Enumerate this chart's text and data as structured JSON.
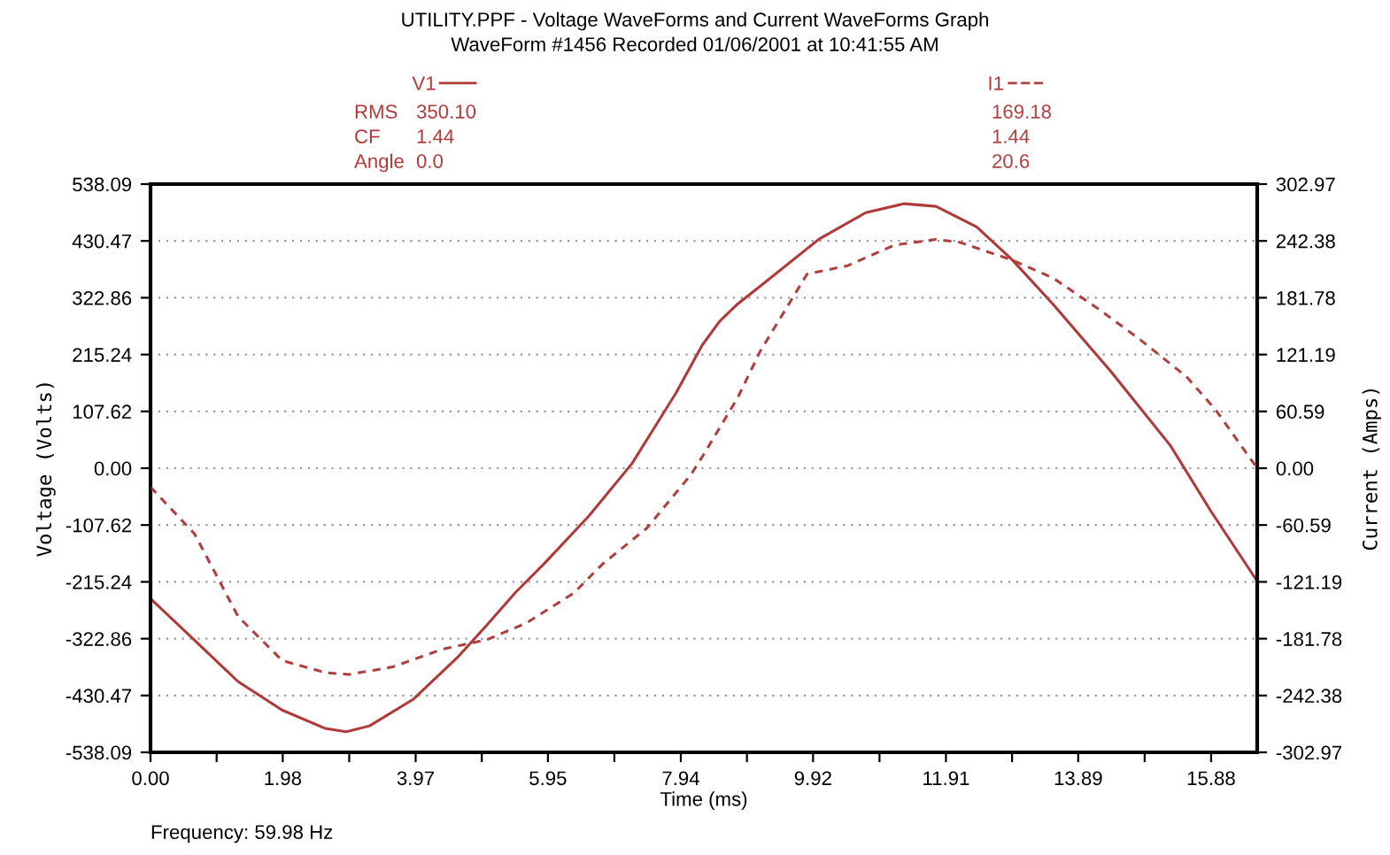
{
  "chart_data": {
    "type": "line",
    "title": "UTILITY.PPF - Voltage WaveForms and Current WaveForms Graph",
    "subtitle": "WaveForm #1456 Recorded 01/06/2001 at 10:41:55 AM",
    "xlabel": "Time (ms)",
    "ylabel": "Voltage (Volts)",
    "y2label": "Current (Amps)",
    "legend": "top",
    "grid": "y",
    "xlim": [
      0,
      16.57
    ],
    "ylim": [
      -538.09,
      538.09
    ],
    "y2lim": [
      -302.97,
      302.97
    ],
    "xticks": [
      {
        "value": 0,
        "label": "0.00"
      },
      {
        "value": 0.99,
        "label": null
      },
      {
        "value": 1.98,
        "label": "1.98"
      },
      {
        "value": 2.975,
        "label": null
      },
      {
        "value": 3.97,
        "label": "3.97"
      },
      {
        "value": 4.96,
        "label": null
      },
      {
        "value": 5.95,
        "label": "5.95"
      },
      {
        "value": 6.945,
        "label": null
      },
      {
        "value": 7.94,
        "label": "7.94"
      },
      {
        "value": 8.93,
        "label": null
      },
      {
        "value": 9.92,
        "label": "9.92"
      },
      {
        "value": 10.915,
        "label": null
      },
      {
        "value": 11.91,
        "label": "11.91"
      },
      {
        "value": 12.9,
        "label": null
      },
      {
        "value": 13.89,
        "label": "13.89"
      },
      {
        "value": 14.885,
        "label": null
      },
      {
        "value": 15.88,
        "label": "15.88"
      }
    ],
    "yticks": [
      {
        "value": -538.09,
        "label": "-538.09"
      },
      {
        "value": -430.47,
        "label": "-430.47"
      },
      {
        "value": -322.86,
        "label": "-322.86"
      },
      {
        "value": -215.24,
        "label": "-215.24"
      },
      {
        "value": -107.62,
        "label": "-107.62"
      },
      {
        "value": 0,
        "label": "0.00"
      },
      {
        "value": 107.62,
        "label": "107.62"
      },
      {
        "value": 215.24,
        "label": "215.24"
      },
      {
        "value": 322.86,
        "label": "322.86"
      },
      {
        "value": 430.47,
        "label": "430.47"
      },
      {
        "value": 538.09,
        "label": "538.09"
      }
    ],
    "y2ticks": [
      {
        "value": -302.97,
        "label": "-302.97"
      },
      {
        "value": -242.38,
        "label": "-242.38"
      },
      {
        "value": -181.78,
        "label": "-181.78"
      },
      {
        "value": -121.19,
        "label": "-121.19"
      },
      {
        "value": -60.59,
        "label": "-60.59"
      },
      {
        "value": 0,
        "label": "0.00"
      },
      {
        "value": 60.59,
        "label": "60.59"
      },
      {
        "value": 121.19,
        "label": "121.19"
      },
      {
        "value": 181.78,
        "label": "181.78"
      },
      {
        "value": 242.38,
        "label": "242.38"
      },
      {
        "value": 302.97,
        "label": "302.97"
      }
    ],
    "series": [
      {
        "name": "V1",
        "color": "#b03a3a",
        "line_style": "solid",
        "x": [
          0,
          0.66,
          1.31,
          1.97,
          2.62,
          2.93,
          3.28,
          3.93,
          4.59,
          5.03,
          5.46,
          5.9,
          6.56,
          7.21,
          7.87,
          8.26,
          8.52,
          8.79,
          9.13,
          10.01,
          10.71,
          11.28,
          11.76,
          12.37,
          12.9,
          13.51,
          14.38,
          15.27,
          15.87,
          16.57
        ],
        "values": [
          -247,
          -326,
          -404,
          -458,
          -493,
          -499,
          -488,
          -438,
          -359,
          -298,
          -236,
          -180,
          -91,
          9,
          143,
          233,
          278,
          311,
          345,
          434,
          484,
          501,
          496,
          457,
          395,
          311,
          183,
          43,
          -80,
          -214
        ]
      },
      {
        "name": "I1",
        "color": "#b04040",
        "line_style": "dashed",
        "axis": "y2",
        "x": [
          0,
          0.66,
          1.31,
          1.97,
          2.62,
          2.97,
          3.62,
          4.37,
          5.03,
          5.63,
          6.34,
          6.77,
          7.43,
          8.09,
          8.26,
          8.79,
          9.13,
          9.83,
          10.44,
          11.14,
          11.76,
          12.11,
          12.9,
          13.51,
          14.21,
          14.82,
          15.52,
          15.95,
          16.57
        ],
        "values": [
          -20,
          -70,
          -158,
          -205,
          -218,
          -220,
          -212,
          -193,
          -183,
          -165,
          -133,
          -102,
          -64,
          -7,
          12,
          75,
          125,
          207,
          216,
          238,
          244,
          241,
          222,
          203,
          169,
          137,
          97,
          62,
          0
        ]
      }
    ],
    "annotations": [
      "RMS",
      "CF",
      "Angle",
      "350.10",
      "1.44",
      "0.0",
      "169.18",
      "1.44",
      "20.6",
      "Frequency: 59.98 Hz"
    ]
  }
}
